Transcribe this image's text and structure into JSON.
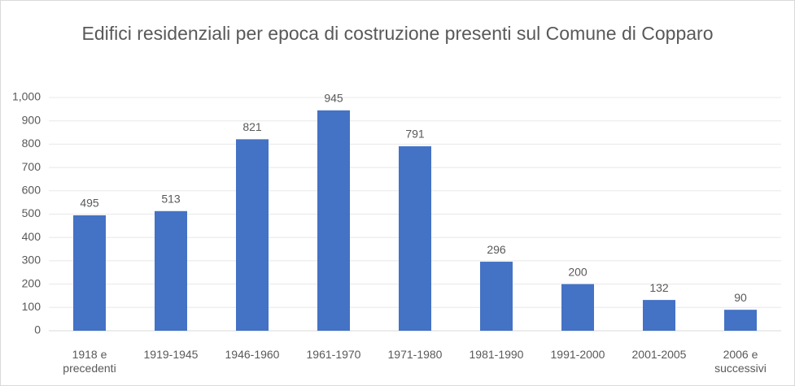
{
  "chart_data": {
    "type": "bar",
    "title": "Edifici residenziali per epoca di costruzione presenti sul Comune di Copparo",
    "categories": [
      "1918 e precedenti",
      "1919-1945",
      "1946-1960",
      "1961-1970",
      "1971-1980",
      "1981-1990",
      "1991-2000",
      "2001-2005",
      "2006 e successivi"
    ],
    "values": [
      495,
      513,
      821,
      945,
      791,
      296,
      200,
      132,
      90
    ],
    "color": "#4472c4",
    "ylim": [
      0,
      1000
    ],
    "yticks": [
      0,
      100,
      200,
      300,
      400,
      500,
      600,
      700,
      800,
      900,
      {
        "value": 1000,
        "label": "1,000"
      }
    ],
    "grid": true
  }
}
